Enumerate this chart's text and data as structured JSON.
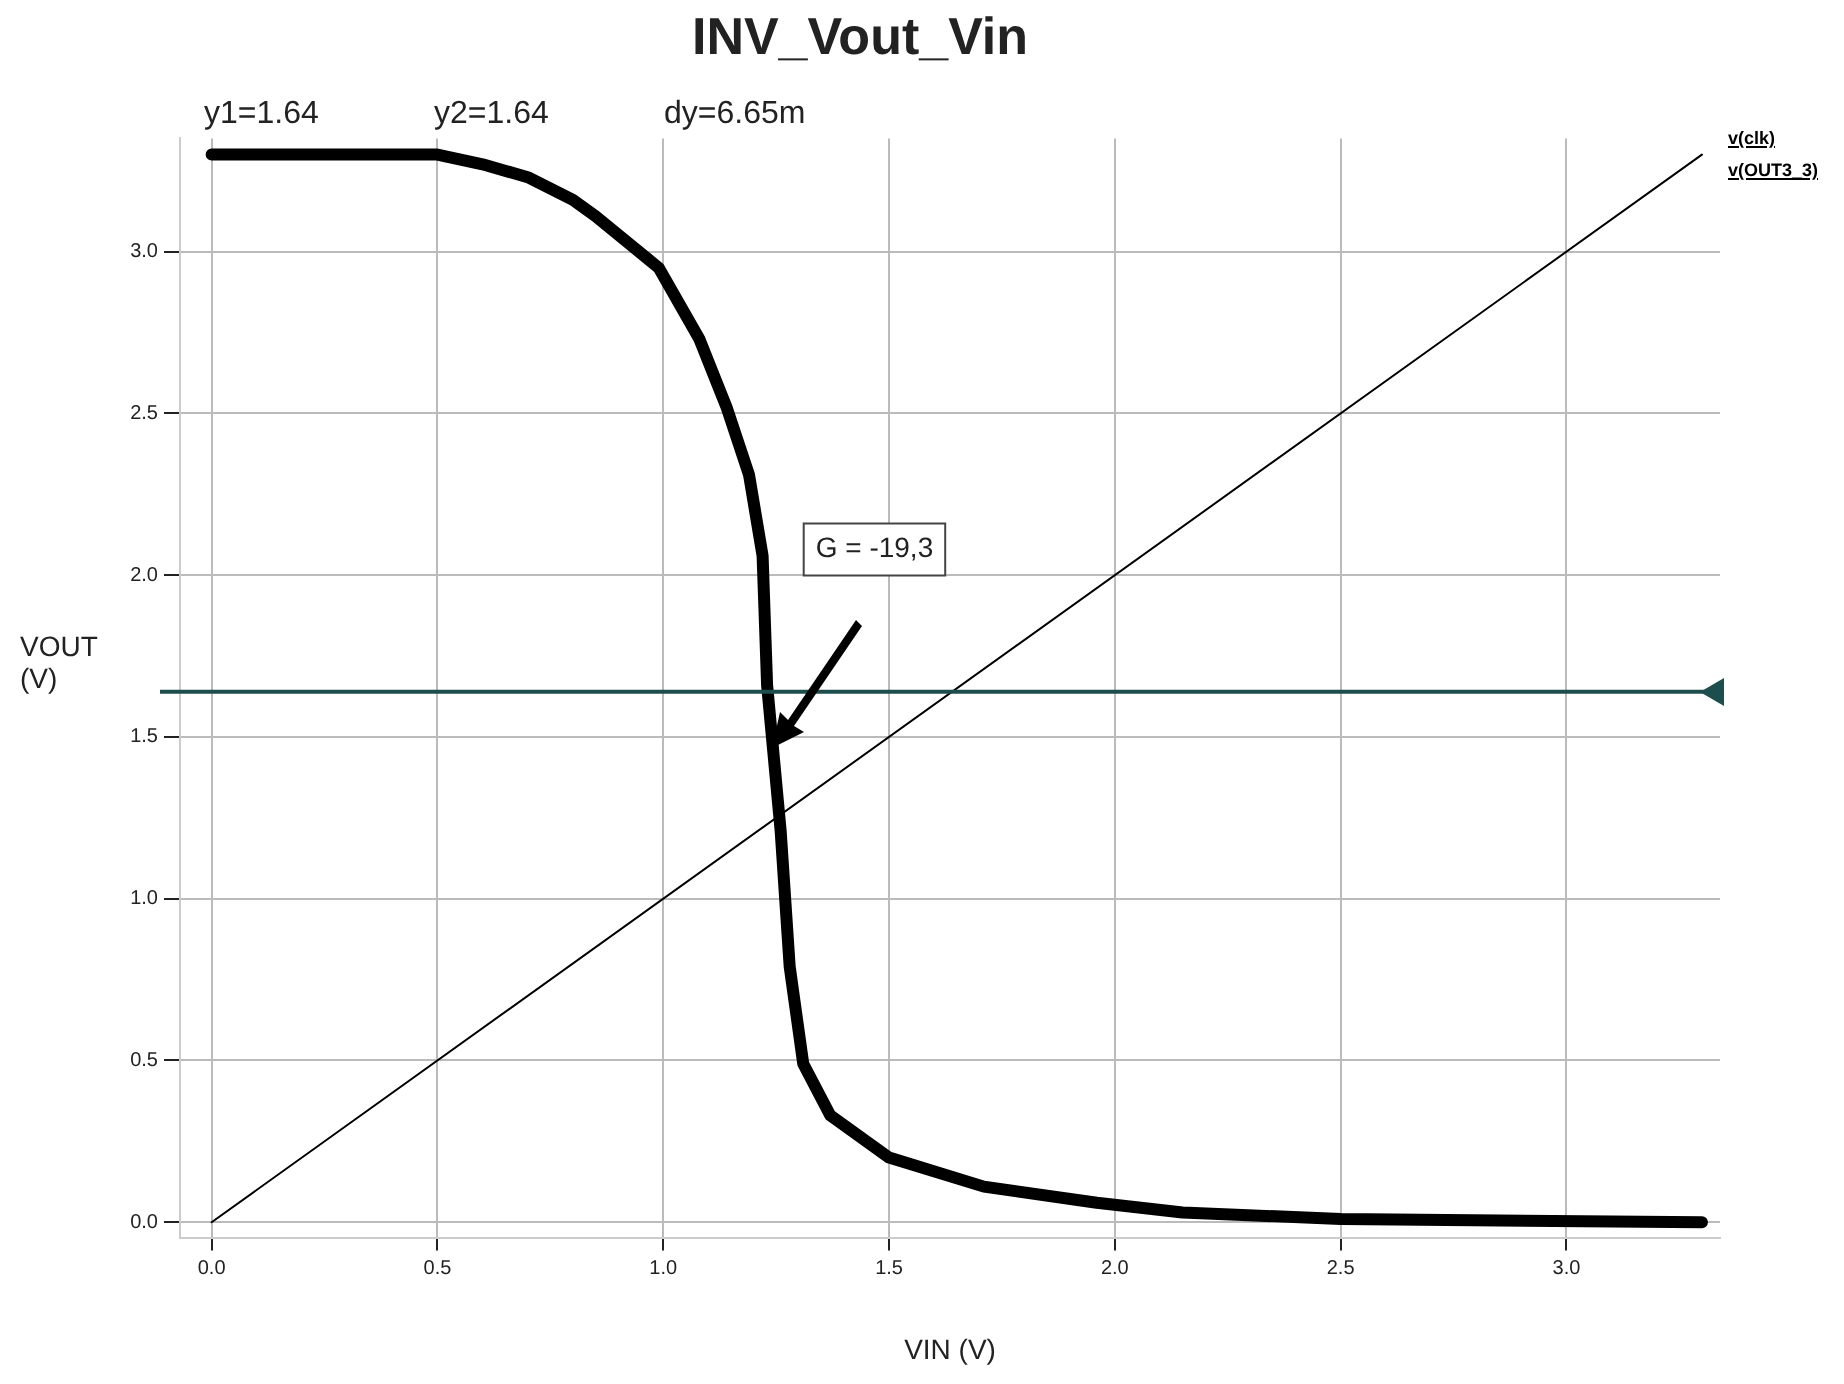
{
  "chart_data": {
    "type": "line",
    "title": "INV_Vout_Vin",
    "xlabel": "VIN (V)",
    "ylabel": "VOUT\n(V)",
    "series": [
      {
        "name": "v(clk)",
        "color": "#000000",
        "x": [
          0,
          3.3
        ],
        "values": [
          0,
          3.3
        ]
      },
      {
        "name": "v(OUT3_3)",
        "color": "#000000",
        "x": [
          0,
          0.5,
          0.6,
          0.7,
          0.8,
          0.85,
          0.99,
          1.08,
          1.14,
          1.19,
          1.22,
          1.23,
          1.26,
          1.28,
          1.31,
          1.37,
          1.5,
          1.71,
          1.96,
          2.15,
          2.5,
          3.3
        ],
        "values": [
          3.3,
          3.3,
          3.27,
          3.23,
          3.16,
          3.11,
          2.95,
          2.73,
          2.52,
          2.31,
          2.06,
          1.66,
          1.21,
          0.79,
          0.49,
          0.33,
          0.2,
          0.11,
          0.06,
          0.03,
          0.01,
          0
        ]
      }
    ],
    "xlim": [
      -0.07,
      3.34
    ],
    "ylim": [
      -0.05,
      3.35
    ],
    "xticks": [
      {
        "value": 0,
        "label": "0.0"
      },
      {
        "value": 0.5,
        "label": "0.5"
      },
      {
        "value": 1,
        "label": "1.0"
      },
      {
        "value": 1.5,
        "label": "1.5"
      },
      {
        "value": 2,
        "label": "2.0"
      },
      {
        "value": 2.5,
        "label": "2.5"
      },
      {
        "value": 3,
        "label": "3.0"
      }
    ],
    "yticks": [
      {
        "value": 0,
        "label": "0.0"
      },
      {
        "value": 0.5,
        "label": "0.5"
      },
      {
        "value": 1,
        "label": "1.0"
      },
      {
        "value": 1.5,
        "label": "1.5"
      },
      {
        "value": 2,
        "label": "2.0"
      },
      {
        "value": 2.5,
        "label": "2.5"
      },
      {
        "value": 3,
        "label": "3.0"
      }
    ],
    "ref_lines": [
      {
        "axis": "y",
        "value": 1.64,
        "color": "#1e4d4d"
      }
    ],
    "annotations": [
      "y1=1.64",
      "y2=1.64",
      "dy=6.65m",
      "G = -19,3"
    ],
    "grid": true,
    "legend": "top right",
    "marker": "none",
    "line_style": "solid"
  }
}
